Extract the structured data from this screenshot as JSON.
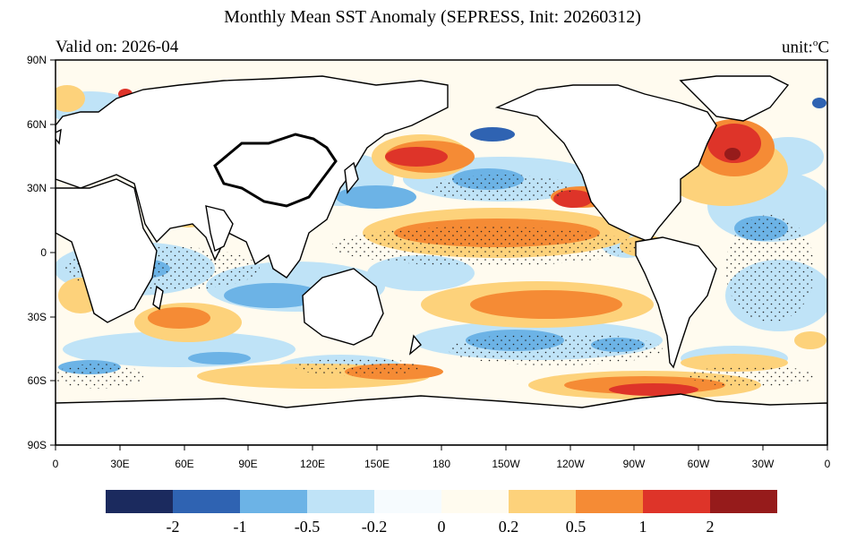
{
  "header": {
    "title": "Monthly Mean SST Anomaly (SEPRESS, Init: 20260312)",
    "valid_label": "Valid on: 2026-04",
    "unit_label": "unit:",
    "unit_symbol": "o",
    "unit_suffix": "C"
  },
  "map": {
    "y_ticks": [
      "90N",
      "60N",
      "30N",
      "0",
      "30S",
      "60S",
      "90S"
    ],
    "x_ticks": [
      "0",
      "30E",
      "60E",
      "90E",
      "120E",
      "150E",
      "180",
      "150W",
      "120W",
      "90W",
      "60W",
      "30W",
      "0"
    ]
  },
  "colorbar": {
    "colors": [
      "#1b2a5e",
      "#2f63b2",
      "#6cb3e6",
      "#bfe3f7",
      "#f6fbfe",
      "#fffbef",
      "#fdd27b",
      "#f58b35",
      "#de3429",
      "#961b1b"
    ],
    "labels": [
      "-2",
      "-1",
      "-0.5",
      "-0.2",
      "0",
      "0.2",
      "0.5",
      "1",
      "2"
    ]
  }
}
